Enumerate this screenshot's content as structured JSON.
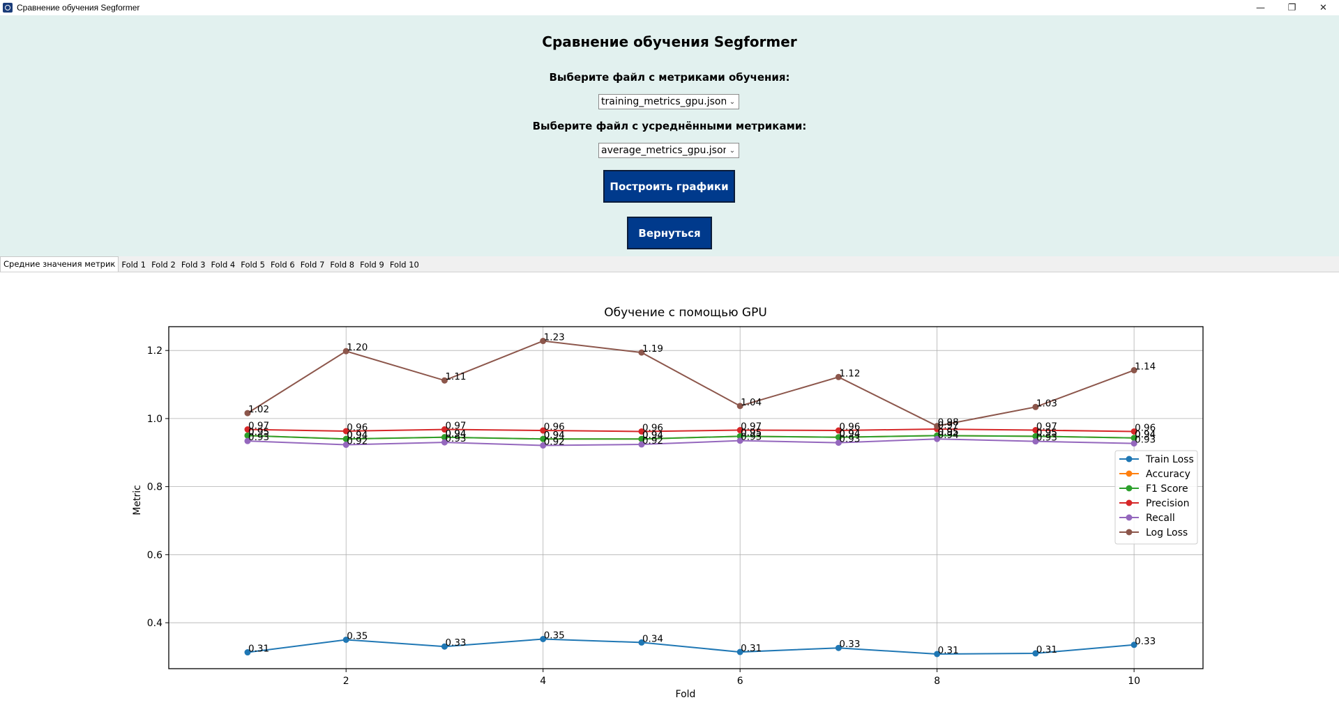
{
  "window": {
    "title": "Сравнение обучения Segformer",
    "controls": {
      "minimize": "—",
      "restore": "❐",
      "close": "✕"
    }
  },
  "panel": {
    "title": "Сравнение обучения Segformer",
    "training_label": "Выберите файл с метриками обучения:",
    "training_value": "training_metrics_gpu.json",
    "average_label": "Выберите файл с усреднёнными метриками:",
    "average_value": "average_metrics_gpu.json",
    "build_button": "Построить графики",
    "back_button": "Вернуться",
    "background": "#e2f1ef",
    "button_color": "#003a8c"
  },
  "tabs": [
    "Средние значения метрик",
    "Fold 1",
    "Fold 2",
    "Fold 3",
    "Fold 4",
    "Fold 5",
    "Fold 6",
    "Fold 7",
    "Fold 8",
    "Fold 9",
    "Fold 10"
  ],
  "chart_data": {
    "type": "line",
    "title": "Обучение с помощью GPU",
    "xlabel": "Fold",
    "ylabel": "Metric",
    "x": [
      1,
      2,
      3,
      4,
      5,
      6,
      7,
      8,
      9,
      10
    ],
    "xlim": [
      0.2,
      10.7
    ],
    "ylim": [
      0.265,
      1.27
    ],
    "xticks": [
      2,
      4,
      6,
      8,
      10
    ],
    "yticks": [
      0.4,
      0.6,
      0.8,
      1.0,
      1.2
    ],
    "grid": true,
    "legend_position": "center-right",
    "series": [
      {
        "name": "Train Loss",
        "color": "#1f77b4",
        "values": [
          0.313,
          0.35,
          0.33,
          0.352,
          0.342,
          0.314,
          0.326,
          0.308,
          0.31,
          0.335
        ]
      },
      {
        "name": "Accuracy",
        "color": "#ff7f0e",
        "values": [
          0.95,
          0.94,
          0.945,
          0.94,
          0.94,
          0.948,
          0.945,
          0.95,
          0.948,
          0.943
        ]
      },
      {
        "name": "F1 Score",
        "color": "#2ca02c",
        "values": [
          0.95,
          0.94,
          0.945,
          0.94,
          0.94,
          0.948,
          0.945,
          0.95,
          0.948,
          0.943
        ]
      },
      {
        "name": "Precision",
        "color": "#d62728",
        "values": [
          0.968,
          0.963,
          0.968,
          0.965,
          0.962,
          0.966,
          0.965,
          0.969,
          0.966,
          0.962
        ]
      },
      {
        "name": "Recall",
        "color": "#9467bd",
        "values": [
          0.934,
          0.923,
          0.93,
          0.921,
          0.924,
          0.935,
          0.929,
          0.94,
          0.933,
          0.927
        ]
      },
      {
        "name": "Log Loss",
        "color": "#8c564b",
        "values": [
          1.016,
          1.198,
          1.112,
          1.228,
          1.194,
          1.037,
          1.122,
          0.978,
          1.034,
          1.142
        ]
      }
    ],
    "annotations": [
      {
        "series": "Train Loss",
        "labels": [
          "0.31",
          "0.35",
          "0.33",
          "0.35",
          "0.34",
          "0.31",
          "0.33",
          "0.31",
          "0.31",
          "0.33"
        ]
      },
      {
        "series": "Accuracy",
        "labels": [
          "0.95",
          "0.94",
          "0.94",
          "0.94",
          "0.94",
          "0.95",
          "0.94",
          "0.95",
          "0.95",
          "0.94"
        ]
      },
      {
        "series": "F1 Score",
        "labels": [
          "0.95",
          "0.94",
          "0.94",
          "0.94",
          "0.94",
          "0.95",
          "0.94",
          "0.95",
          "0.95",
          "0.94"
        ]
      },
      {
        "series": "Precision",
        "labels": [
          "0.97",
          "0.96",
          "0.97",
          "0.96",
          "0.96",
          "0.97",
          "0.96",
          "0.97",
          "0.97",
          "0.96"
        ]
      },
      {
        "series": "Recall",
        "labels": [
          "0.93",
          "0.92",
          "0.93",
          "0.92",
          "0.92",
          "0.93",
          "0.93",
          "0.94",
          "0.93",
          "0.93"
        ]
      },
      {
        "series": "Log Loss",
        "labels": [
          "1.02",
          "1.20",
          "1.11",
          "1.23",
          "1.19",
          "1.04",
          "1.12",
          "0.98",
          "1.03",
          "1.14"
        ]
      }
    ]
  }
}
